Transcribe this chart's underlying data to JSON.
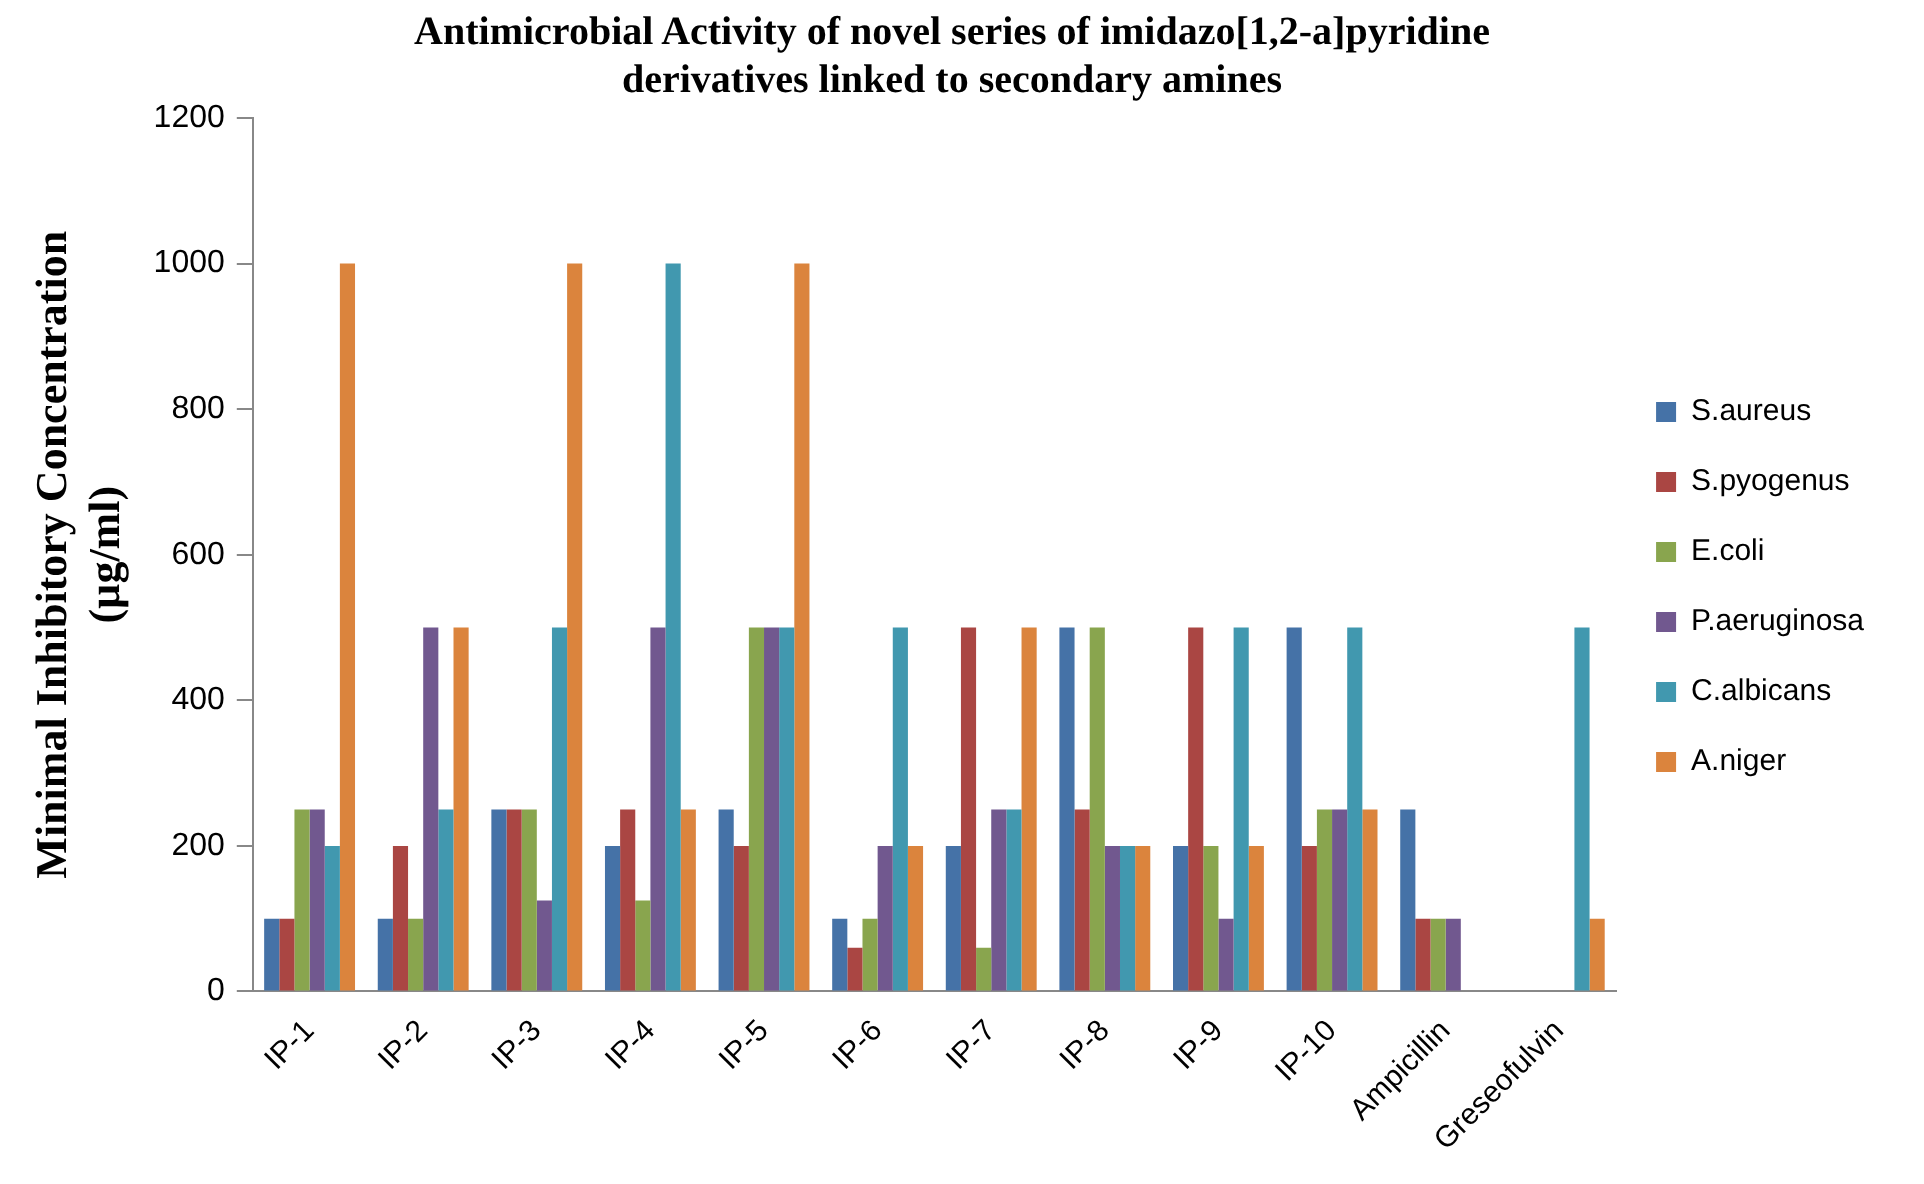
{
  "chart_data": {
    "type": "bar",
    "title": "Antimicrobial Activity of novel series of imidazo[1,2-a]pyridine\nderivatives linked to secondary amines",
    "ylabel": "Minimal Inhibitory Concentration\n(µg/ml)",
    "categories": [
      "IP-1",
      "IP-2",
      "IP-3",
      "IP-4",
      "IP-5",
      "IP-6",
      "IP-7",
      "IP-8",
      "IP-9",
      "IP-10",
      "Ampicillin",
      "Greseofulvin"
    ],
    "series": [
      {
        "name": "S.aureus",
        "color": "#4572a7",
        "values": [
          100,
          100,
          250,
          200,
          250,
          100,
          200,
          500,
          200,
          500,
          250,
          null
        ]
      },
      {
        "name": "S.pyogenus",
        "color": "#aa4643",
        "values": [
          100,
          200,
          250,
          250,
          200,
          60,
          500,
          250,
          500,
          200,
          100,
          null
        ]
      },
      {
        "name": "E.coli",
        "color": "#89a54e",
        "values": [
          250,
          100,
          250,
          125,
          500,
          100,
          60,
          500,
          200,
          250,
          100,
          null
        ]
      },
      {
        "name": "P.aeruginosa",
        "color": "#71588f",
        "values": [
          250,
          500,
          125,
          500,
          500,
          200,
          250,
          200,
          100,
          250,
          100,
          null
        ]
      },
      {
        "name": "C.albicans",
        "color": "#4198af",
        "values": [
          200,
          250,
          500,
          1000,
          500,
          500,
          250,
          200,
          500,
          500,
          null,
          500
        ]
      },
      {
        "name": "A.niger",
        "color": "#db843d",
        "values": [
          1000,
          500,
          1000,
          250,
          1000,
          200,
          500,
          200,
          200,
          250,
          null,
          100
        ]
      }
    ],
    "ylim": [
      0,
      1200
    ],
    "yticks": [
      0,
      200,
      400,
      600,
      800,
      1000,
      1200
    ],
    "grid": false,
    "legend": "right"
  }
}
